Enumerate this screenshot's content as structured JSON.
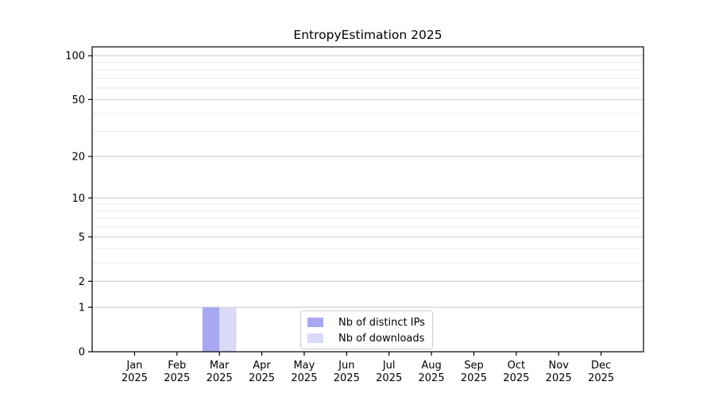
{
  "figure": {
    "background": "#ffffff"
  },
  "chart_data": {
    "type": "bar",
    "title": "EntropyEstimation 2025",
    "xlabel": "",
    "ylabel": "",
    "categories": [
      "Jan 2025",
      "Feb 2025",
      "Mar 2025",
      "Apr 2025",
      "May 2025",
      "Jun 2025",
      "Jul 2025",
      "Aug 2025",
      "Sep 2025",
      "Oct 2025",
      "Nov 2025",
      "Dec 2025"
    ],
    "series": [
      {
        "name": "Nb of distinct IPs",
        "color": "#a8a8f2",
        "values": [
          0,
          0,
          1,
          0,
          0,
          0,
          0,
          0,
          0,
          0,
          0,
          0
        ]
      },
      {
        "name": "Nb of downloads",
        "color": "#d9d9f8",
        "values": [
          0,
          0,
          1,
          0,
          0,
          0,
          0,
          0,
          0,
          0,
          0,
          0
        ]
      }
    ],
    "y_scale": "log1p",
    "y_axis_max": 115,
    "y_major_ticks": [
      0,
      1,
      2,
      5,
      10,
      20,
      50,
      100
    ],
    "y_minor_gridlines": [
      3,
      4,
      6,
      7,
      8,
      9,
      30,
      40,
      60,
      70,
      80,
      90
    ],
    "grid": "horizontal",
    "legend_position": "lower center",
    "colors": {
      "major_grid": "#c9c9c9",
      "minor_grid": "#e9e9e9",
      "axis": "#000000",
      "text": "#000000"
    }
  }
}
